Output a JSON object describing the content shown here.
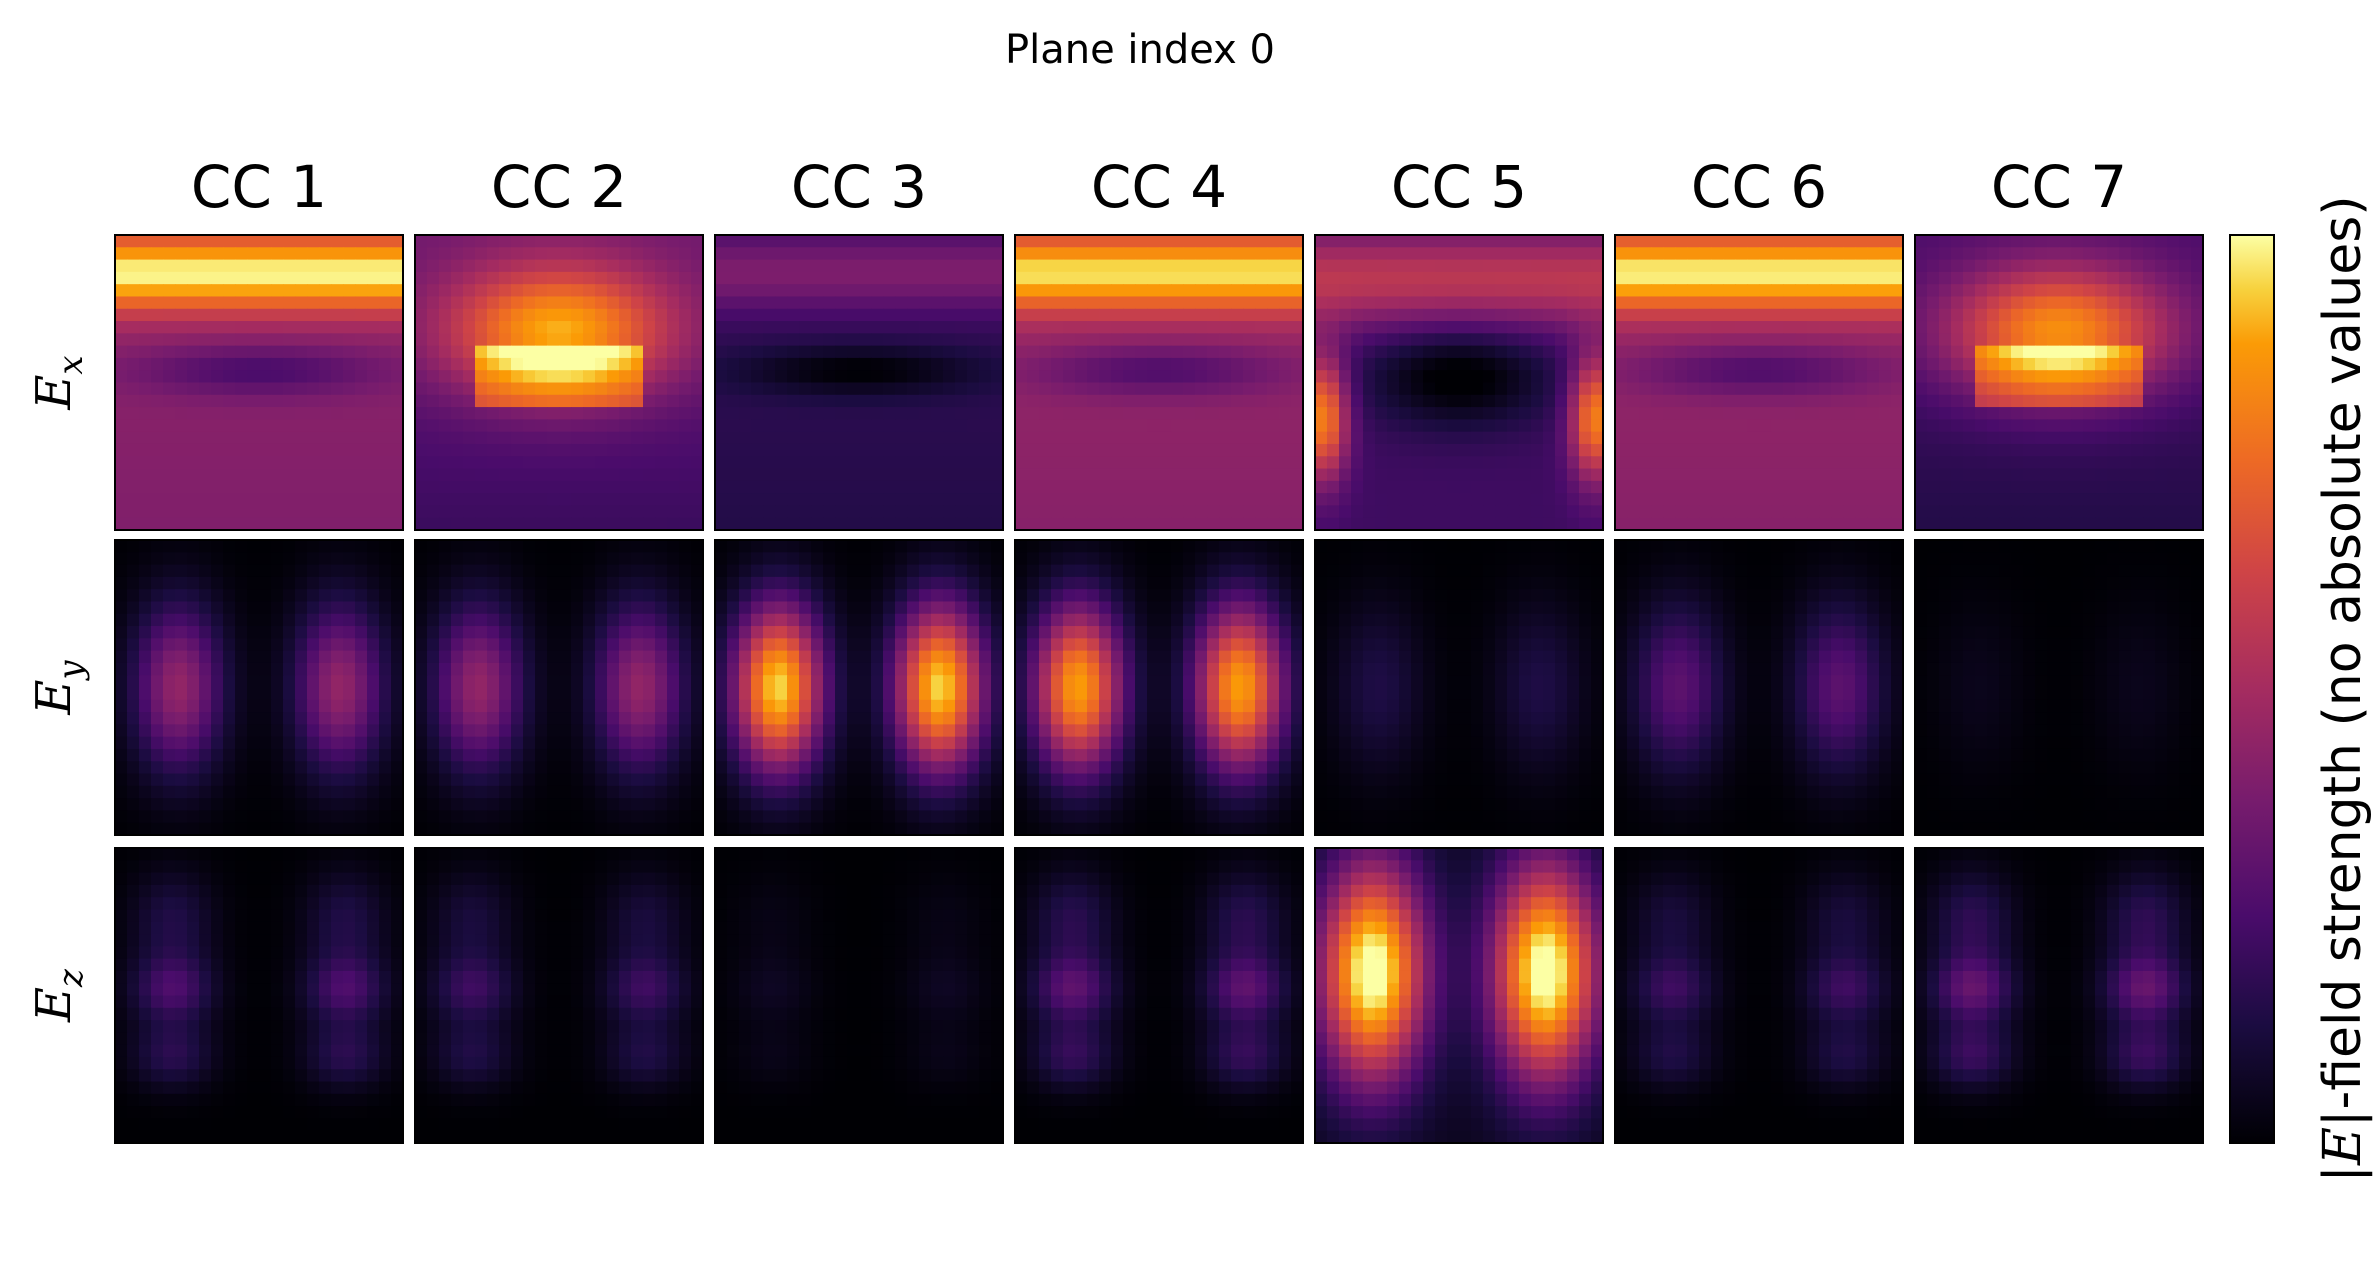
{
  "chart_data": {
    "type": "heatmap",
    "title": "Plane index 0",
    "columns": [
      "CC 1",
      "CC 2",
      "CC 3",
      "CC 4",
      "CC 5",
      "CC 6",
      "CC 7"
    ],
    "rows": [
      {
        "symbol": "E",
        "sub": "x"
      },
      {
        "symbol": "E",
        "sub": "y"
      },
      {
        "symbol": "E",
        "sub": "z"
      }
    ],
    "colorbar": {
      "label_pre": "|",
      "label_sym": "E",
      "label_post": "|-field strength (no absolute values)",
      "colormap": "inferno",
      "ticks": "none"
    },
    "row_peak": [
      [
        0.95,
        0.95,
        0.35,
        0.92,
        0.8,
        0.94,
        0.88
      ],
      [
        0.45,
        0.45,
        0.95,
        0.88,
        0.14,
        0.3,
        0.05
      ],
      [
        0.24,
        0.2,
        0.06,
        0.28,
        1.0,
        0.2,
        0.3
      ]
    ],
    "row_base": [
      [
        0.4,
        0.35,
        0.15,
        0.42,
        0.22,
        0.42,
        0.25
      ],
      [
        0.0,
        0.0,
        0.0,
        0.0,
        0.0,
        0.0,
        0.0
      ],
      [
        0.0,
        0.0,
        0.0,
        0.0,
        0.05,
        0.0,
        0.0
      ]
    ],
    "grid": [
      24,
      24
    ]
  }
}
